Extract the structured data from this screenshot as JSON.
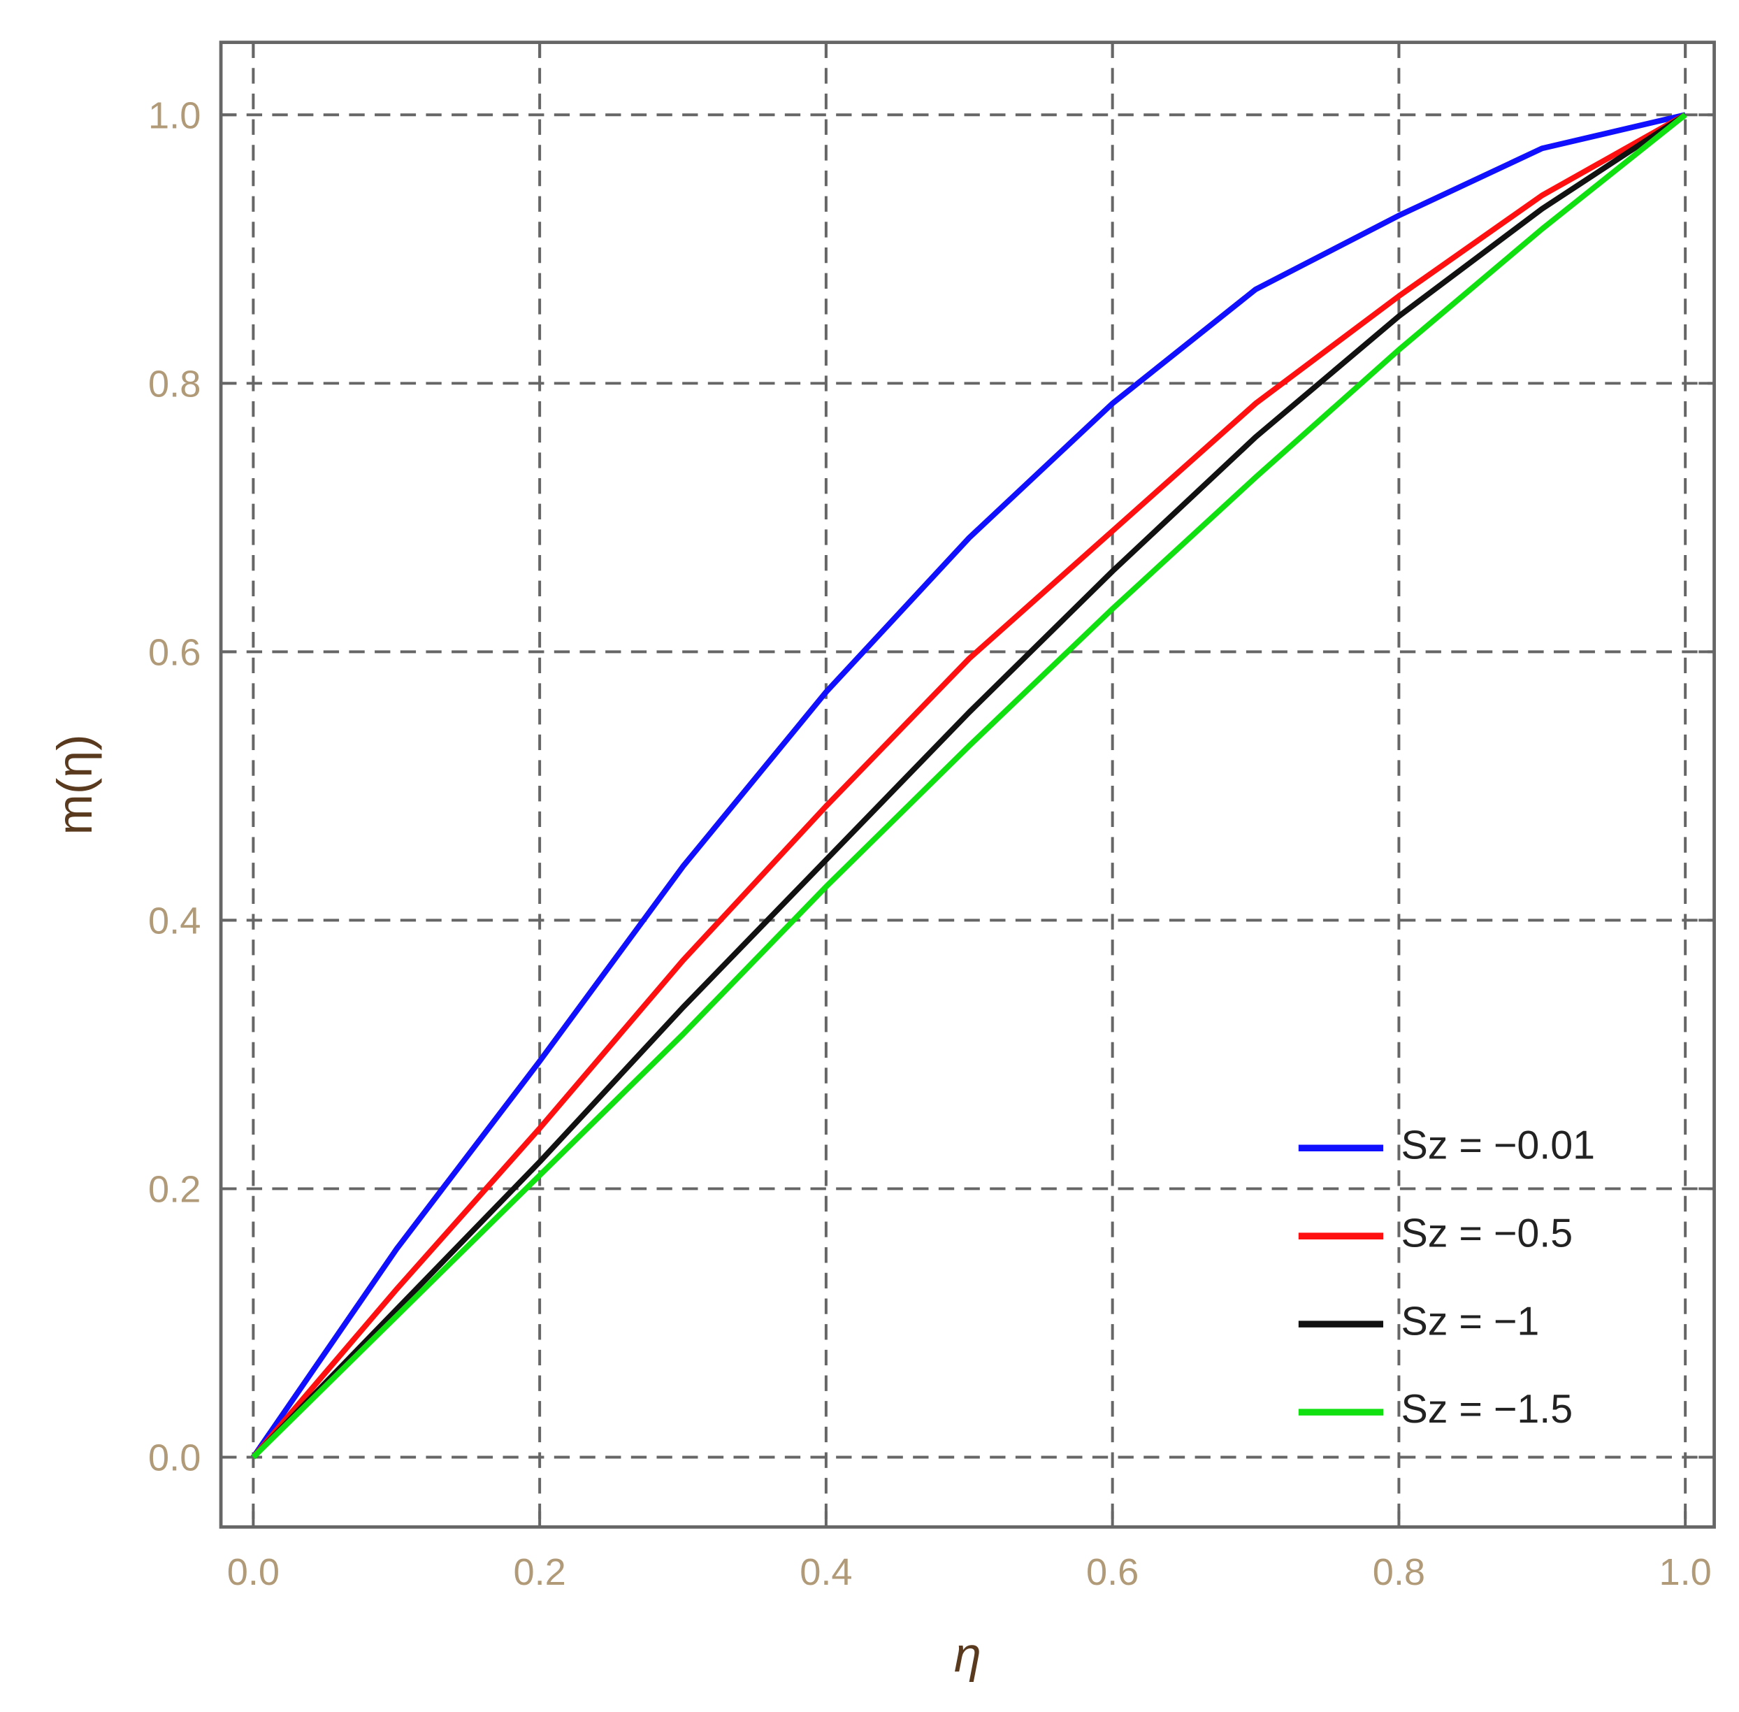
{
  "chart_data": {
    "type": "line",
    "x_label": "η",
    "y_label": "m(η)",
    "x": [
      0,
      0.1,
      0.2,
      0.3,
      0.4,
      0.5,
      0.6,
      0.7,
      0.8,
      0.9,
      1
    ],
    "series": [
      {
        "name": "Sz = −0.01",
        "color": "#1010ff",
        "values": [
          0,
          0.155,
          0.295,
          0.44,
          0.57,
          0.685,
          0.785,
          0.87,
          0.925,
          0.975,
          1
        ]
      },
      {
        "name": "Sz = −0.5",
        "color": "#ff1010",
        "values": [
          0,
          0.125,
          0.245,
          0.37,
          0.485,
          0.595,
          0.69,
          0.785,
          0.865,
          0.94,
          1
        ]
      },
      {
        "name": "Sz = −1",
        "color": "#111111",
        "values": [
          0,
          0.11,
          0.22,
          0.335,
          0.445,
          0.555,
          0.66,
          0.76,
          0.85,
          0.93,
          1
        ]
      },
      {
        "name": "Sz = −1.5",
        "color": "#10e010",
        "values": [
          0,
          0.105,
          0.21,
          0.315,
          0.425,
          0.53,
          0.632,
          0.73,
          0.825,
          0.915,
          1
        ]
      }
    ],
    "xlim": [
      -0.0226,
      1.0202
    ],
    "ylim": [
      -0.052,
      1.054
    ],
    "xticks": [
      {
        "value": 0,
        "label": "0.0"
      },
      0.2,
      0.4,
      0.6,
      0.8,
      {
        "value": 1,
        "label": "1.0"
      }
    ],
    "yticks": [
      {
        "value": 0,
        "label": "0.0"
      },
      0.2,
      0.4,
      0.6,
      0.8,
      {
        "value": 1,
        "label": "1.0"
      }
    ],
    "grid": true,
    "legend": "lower right"
  }
}
